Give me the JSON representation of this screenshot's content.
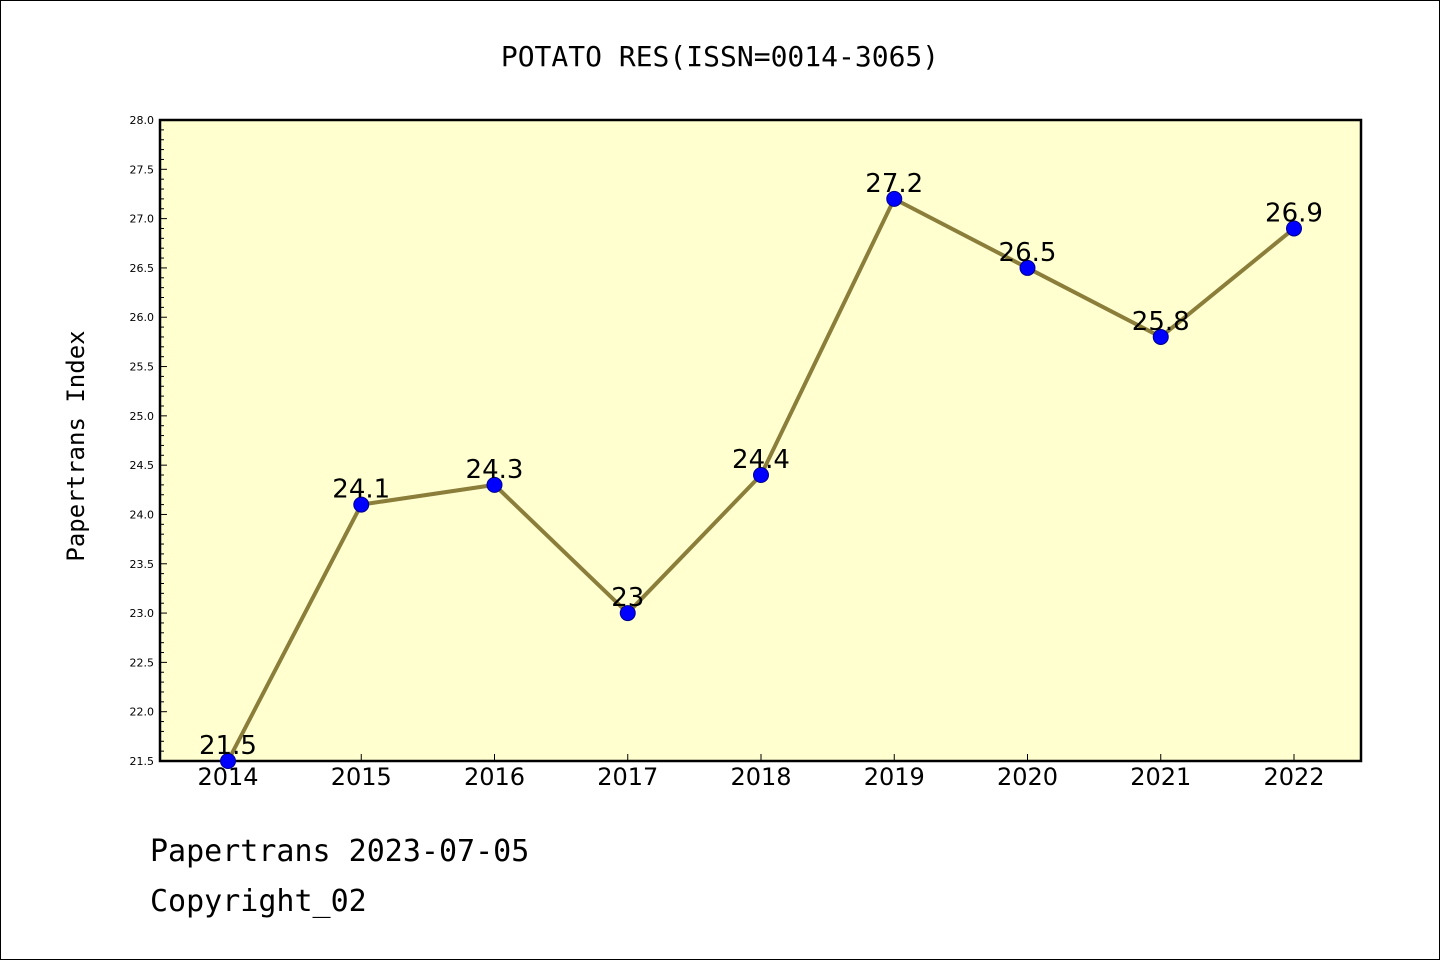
{
  "chart_data": {
    "type": "line",
    "title": "POTATO RES(ISSN=0014-3065)",
    "xlabel": "",
    "ylabel": "Papertrans Index",
    "categories": [
      "2014",
      "2015",
      "2016",
      "2017",
      "2018",
      "2019",
      "2020",
      "2021",
      "2022"
    ],
    "series": [
      {
        "values": [
          21.5,
          24.1,
          24.3,
          23.0,
          24.4,
          27.2,
          26.5,
          25.8,
          26.9
        ],
        "labels": [
          "21.5",
          "24.1",
          "24.3",
          "23",
          "24.4",
          "27.2",
          "26.5",
          "25.8",
          "26.9"
        ],
        "line_color": "#8b7d3a",
        "marker_color": "#0000ff"
      }
    ],
    "ylim": [
      21.5,
      28.0
    ],
    "yticks": [
      "21.5",
      "22.0",
      "22.5",
      "23.0",
      "23.5",
      "24.0",
      "24.5",
      "25.0",
      "25.5",
      "26.0",
      "26.5",
      "27.0",
      "27.5",
      "28.0"
    ],
    "plot_background": "#ffffd0",
    "grid": false,
    "legend": "none"
  },
  "footer": {
    "line1": "Papertrans 2023-07-05",
    "line2": "Copyright_02"
  }
}
